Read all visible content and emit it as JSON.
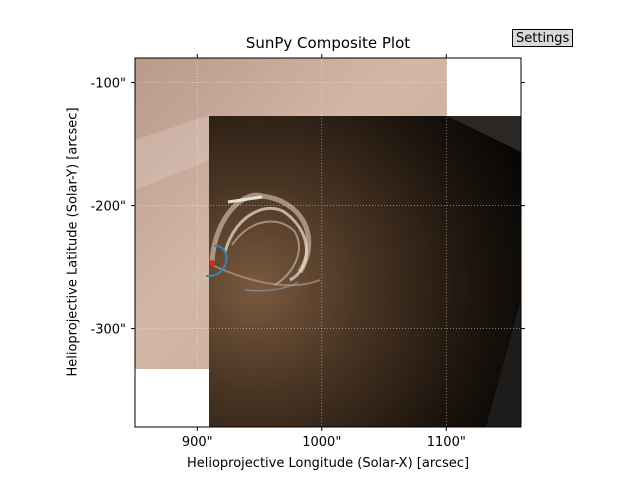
{
  "toolbar": {
    "settings_label": "Settings"
  },
  "chart_data": {
    "type": "image",
    "title": "SunPy Composite Plot",
    "xlabel": "Helioprojective Longitude (Solar-X) [arcsec]",
    "ylabel": "Helioprojective Latitude (Solar-Y) [arcsec]",
    "xlim": [
      850,
      1160
    ],
    "ylim": [
      -380,
      -80
    ],
    "x_ticks": [
      900,
      1000,
      1100
    ],
    "x_tick_labels": [
      "900\"",
      "1000\"",
      "1100\""
    ],
    "y_ticks": [
      -100,
      -200,
      -300
    ],
    "y_tick_labels": [
      "-100\"",
      "-200\"",
      "-300\""
    ],
    "grid": true,
    "layers": [
      {
        "colormap": "sunset-tan",
        "extent": {
          "x": [
            850,
            1100
          ],
          "y": [
            -333,
            -80
          ]
        }
      },
      {
        "colormap": "dark-brown",
        "extent": {
          "x": [
            909,
            1160
          ],
          "y": [
            -380,
            -126
          ]
        }
      }
    ],
    "colors": {
      "layer1": "#c9aa98",
      "layer2": "#3a2a1c",
      "contour": "#3a83b7",
      "marker": "#d62728"
    }
  }
}
